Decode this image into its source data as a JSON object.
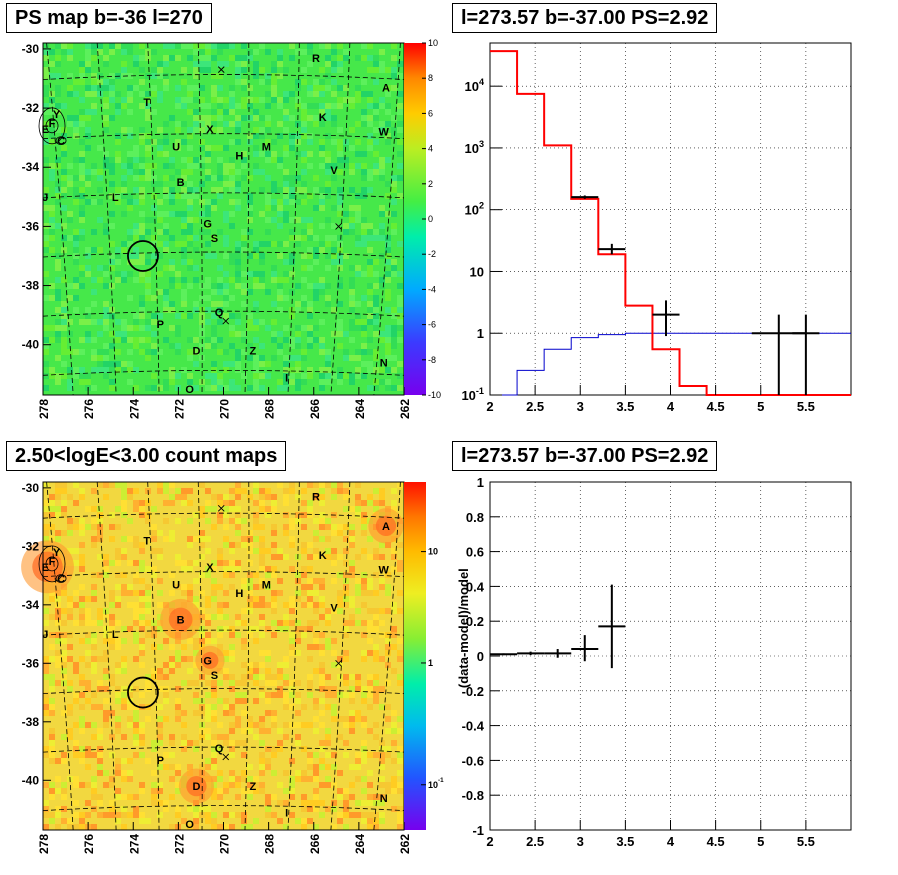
{
  "panels": {
    "top_left_title": "PS map b=-36 l=270",
    "top_right_title": "l=273.57 b=-37.00 PS=2.92",
    "bottom_left_title": "2.50<logE<3.00 count maps",
    "bottom_right_title": "l=273.57 b=-37.00 PS=2.92"
  },
  "colors": {
    "model_red": "#ff0000",
    "blue_line": "#0000cc",
    "data_black": "#000000",
    "ps_map_bg": "#44ee44",
    "count_map_bg": "#f5e040"
  },
  "chart_data": [
    {
      "type": "heatmap",
      "name": "ps_map",
      "xlim": [
        278,
        262
      ],
      "ylim": [
        -41.7,
        -29.8
      ],
      "x_ticks": [
        "278",
        "276",
        "274",
        "272",
        "270",
        "268",
        "266",
        "264",
        "262"
      ],
      "y_ticks": [
        "-30",
        "-32",
        "-34",
        "-36",
        "-38",
        "-40"
      ],
      "colorbar": {
        "min": -10,
        "max": 10,
        "ticks": [
          "10",
          "8",
          "6",
          "4",
          "2",
          "0",
          "-2",
          "-4",
          "-6",
          "-8",
          "-10"
        ]
      },
      "source_labels": [
        {
          "t": "R",
          "l": 265.9,
          "b": -30.3
        },
        {
          "t": "A",
          "l": 262.8,
          "b": -31.3
        },
        {
          "t": "T",
          "l": 273.4,
          "b": -31.8
        },
        {
          "t": "Y",
          "l": 277.4,
          "b": -32.2
        },
        {
          "t": "K",
          "l": 265.6,
          "b": -32.3
        },
        {
          "t": "E",
          "l": 277.9,
          "b": -32.7
        },
        {
          "t": "F",
          "l": 277.6,
          "b": -32.5
        },
        {
          "t": "X",
          "l": 270.6,
          "b": -32.7
        },
        {
          "t": "W",
          "l": 262.9,
          "b": -32.8
        },
        {
          "t": "C",
          "l": 277.2,
          "b": -33.1
        },
        {
          "t": "U",
          "l": 272.1,
          "b": -33.3
        },
        {
          "t": "M",
          "l": 268.1,
          "b": -33.3
        },
        {
          "t": "H",
          "l": 269.3,
          "b": -33.6
        },
        {
          "t": "V",
          "l": 265.1,
          "b": -34.1
        },
        {
          "t": "B",
          "l": 271.9,
          "b": -34.5
        },
        {
          "t": "J",
          "l": 277.9,
          "b": -35.0
        },
        {
          "t": "L",
          "l": 274.8,
          "b": -35.0
        },
        {
          "t": "G",
          "l": 270.7,
          "b": -35.9
        },
        {
          "t": "S",
          "l": 270.4,
          "b": -36.4
        },
        {
          "t": "Q",
          "l": 270.2,
          "b": -38.9
        },
        {
          "t": "P",
          "l": 272.8,
          "b": -39.3
        },
        {
          "t": "D",
          "l": 271.2,
          "b": -40.2
        },
        {
          "t": "Z",
          "l": 268.7,
          "b": -40.2
        },
        {
          "t": "N",
          "l": 262.9,
          "b": -40.6
        },
        {
          "t": "I",
          "l": 267.2,
          "b": -41.1
        },
        {
          "t": "O",
          "l": 271.5,
          "b": -41.5
        }
      ],
      "roi_circle": {
        "l": 273.57,
        "b": -37.0
      }
    },
    {
      "type": "line",
      "name": "spectrum",
      "xlim": [
        2,
        6
      ],
      "ylim": [
        0.1,
        50000
      ],
      "yscale": "log",
      "x_ticks": [
        "2",
        "2.5",
        "3",
        "3.5",
        "4",
        "4.5",
        "5",
        "5.5"
      ],
      "y_ticks": [
        "10^-1",
        "1",
        "10",
        "10^2",
        "10^3",
        "10^4"
      ],
      "grid": true,
      "series": [
        {
          "role": "model",
          "edges": [
            2,
            2.3,
            2.6,
            2.9,
            3.2,
            3.5,
            3.8,
            4.1,
            4.4,
            6
          ],
          "values": [
            37000,
            7500,
            1100,
            150,
            19,
            2.8,
            0.55,
            0.14,
            0.1
          ]
        },
        {
          "role": "background",
          "edges": [
            2,
            2.3,
            2.6,
            2.9,
            3.2,
            3.5,
            6
          ],
          "values": [
            0.1,
            0.25,
            0.55,
            0.85,
            0.95,
            1.0
          ]
        },
        {
          "role": "data",
          "points": [
            {
              "x": 3.05,
              "xerr": 0.15,
              "y": 160,
              "ylo": 150,
              "yhi": 170
            },
            {
              "x": 3.35,
              "xerr": 0.15,
              "y": 23,
              "ylo": 19,
              "yhi": 28
            },
            {
              "x": 3.95,
              "xerr": 0.15,
              "y": 2.0,
              "ylo": 0.9,
              "yhi": 3.4
            },
            {
              "x": 5.2,
              "xerr": 0.3,
              "y": 1.0,
              "ylo": 0.1,
              "yhi": 2.0
            },
            {
              "x": 5.5,
              "xerr": 0.15,
              "y": 1.0,
              "ylo": 0.1,
              "yhi": 2.0
            }
          ]
        }
      ]
    },
    {
      "type": "heatmap",
      "name": "count_map",
      "xlim": [
        278,
        262
      ],
      "ylim": [
        -41.7,
        -29.8
      ],
      "x_ticks": [
        "278",
        "276",
        "274",
        "272",
        "270",
        "268",
        "266",
        "264",
        "262"
      ],
      "y_ticks": [
        "-30",
        "-32",
        "-34",
        "-36",
        "-38",
        "-40"
      ],
      "colorbar": {
        "scale": "log",
        "ticks": [
          "10",
          "1",
          "10^-1"
        ]
      },
      "hotspots": [
        {
          "l": 277.8,
          "b": -32.7,
          "r": 0.9
        },
        {
          "l": 262.8,
          "b": -31.3,
          "r": 0.6
        },
        {
          "l": 271.9,
          "b": -34.5,
          "r": 0.7
        },
        {
          "l": 270.6,
          "b": -35.9,
          "r": 0.5
        },
        {
          "l": 271.2,
          "b": -40.2,
          "r": 0.6
        }
      ]
    },
    {
      "type": "scatter",
      "name": "residuals",
      "xlim": [
        2,
        6
      ],
      "ylim": [
        -1,
        1
      ],
      "ylabel": "(data-model)/model",
      "x_ticks": [
        "2",
        "2.5",
        "3",
        "3.5",
        "4",
        "4.5",
        "5",
        "5.5"
      ],
      "y_ticks": [
        "1",
        "0.8",
        "0.6",
        "0.4",
        "0.2",
        "0",
        "-0.2",
        "-0.4",
        "-0.6",
        "-0.8",
        "-1"
      ],
      "grid": true,
      "points": [
        {
          "x": 2.15,
          "xerr": 0.15,
          "y": 0.01,
          "ylo": 0.005,
          "yhi": 0.015
        },
        {
          "x": 2.45,
          "xerr": 0.15,
          "y": 0.015,
          "ylo": 0.005,
          "yhi": 0.025
        },
        {
          "x": 2.75,
          "xerr": 0.15,
          "y": 0.015,
          "ylo": -0.01,
          "yhi": 0.04
        },
        {
          "x": 3.05,
          "xerr": 0.15,
          "y": 0.04,
          "ylo": -0.03,
          "yhi": 0.12
        },
        {
          "x": 3.35,
          "xerr": 0.15,
          "y": 0.17,
          "ylo": -0.07,
          "yhi": 0.41
        }
      ]
    }
  ]
}
